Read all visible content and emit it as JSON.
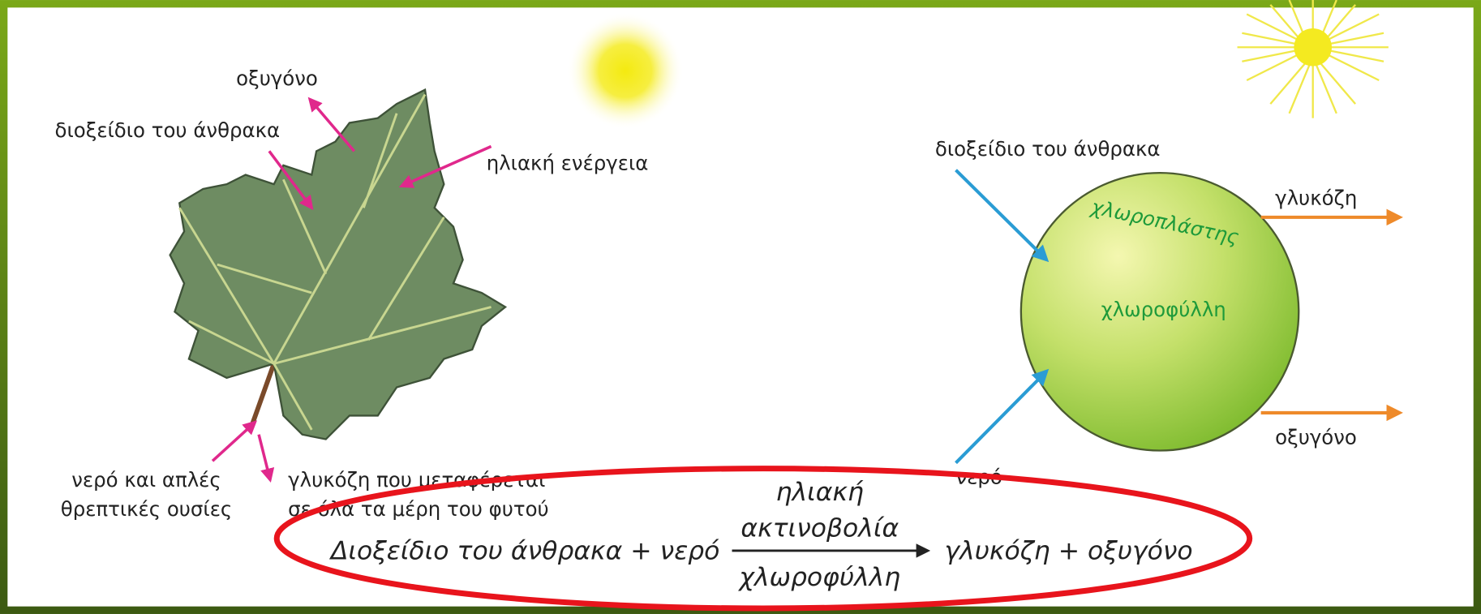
{
  "leaf": {
    "oxygen": "οξυγόνο",
    "carbon_dioxide": "διοξείδιο του άνθρακα",
    "solar_energy": "ηλιακή ενέργεια",
    "water_nutrients": [
      "νερό και απλές",
      "θρεπτικές ουσίες"
    ],
    "glucose": [
      "γλυκόζη που μεταφέρεται",
      "σε όλα τα μέρη του φυτού"
    ]
  },
  "chloroplast": {
    "carbon_dioxide": "διοξείδιο του άνθρακα",
    "name": "χλωροπλάστης",
    "chlorophyll": "χλωροφύλλη",
    "glucose": "γλυκόζη",
    "oxygen": "οξυγόνο",
    "water": "νερό"
  },
  "equation": {
    "reactants": "Διοξείδιο του άνθρακα + νερό",
    "condition_top": [
      "ηλιακή",
      "ακτινοβολία"
    ],
    "condition_bottom": "χλωροφύλλη",
    "products": "γλυκόζη + οξυγόνο"
  }
}
